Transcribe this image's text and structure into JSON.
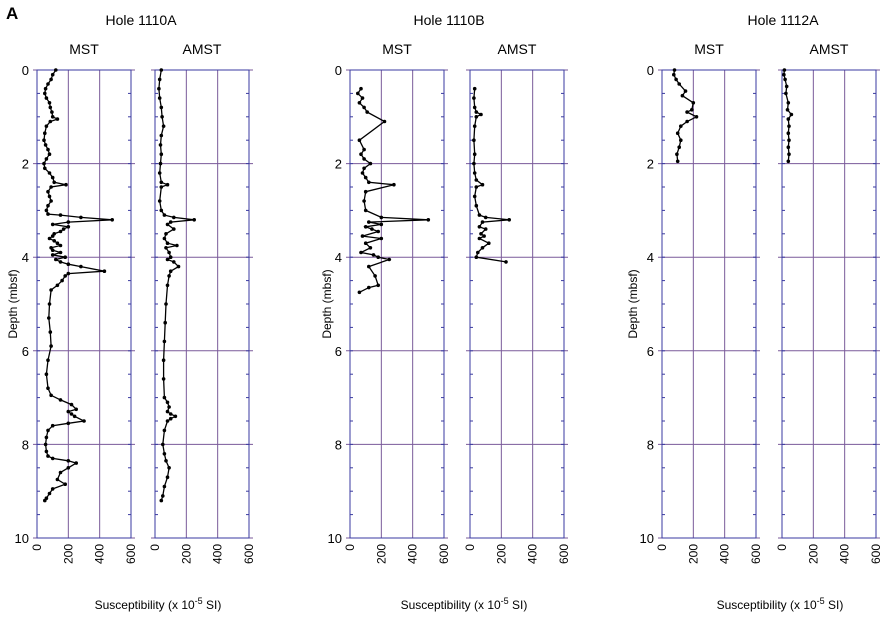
{
  "figure": {
    "panel_label": "A",
    "ylabel": "Depth (mbsf)",
    "xlabel_prefix": "Susceptibility (x 10",
    "xlabel_exp": "-5",
    "xlabel_suffix": " SI)",
    "colors": {
      "grid": "#7a5a9a",
      "axis": "#3a3aa0",
      "line": "#000000"
    }
  },
  "chart_data": [
    {
      "type": "line",
      "title": "Hole 1110A",
      "ylim": [
        0,
        10
      ],
      "xlim": [
        0,
        600
      ],
      "y_ticks": [
        0,
        2,
        4,
        6,
        8,
        10
      ],
      "x_ticks": [
        0,
        200,
        400,
        600
      ],
      "y_inverted": true,
      "series": [
        {
          "name": "MST",
          "points": [
            [
              120,
              0
            ],
            [
              100,
              0.1
            ],
            [
              90,
              0.2
            ],
            [
              70,
              0.3
            ],
            [
              55,
              0.4
            ],
            [
              50,
              0.5
            ],
            [
              60,
              0.6
            ],
            [
              80,
              0.7
            ],
            [
              85,
              0.8
            ],
            [
              95,
              0.9
            ],
            [
              100,
              1.0
            ],
            [
              130,
              1.05
            ],
            [
              85,
              1.1
            ],
            [
              60,
              1.2
            ],
            [
              50,
              1.35
            ],
            [
              45,
              1.5
            ],
            [
              55,
              1.6
            ],
            [
              70,
              1.7
            ],
            [
              80,
              1.8
            ],
            [
              60,
              1.9
            ],
            [
              45,
              2.0
            ],
            [
              50,
              2.1
            ],
            [
              80,
              2.2
            ],
            [
              100,
              2.3
            ],
            [
              110,
              2.4
            ],
            [
              185,
              2.45
            ],
            [
              90,
              2.5
            ],
            [
              70,
              2.6
            ],
            [
              80,
              2.7
            ],
            [
              90,
              2.8
            ],
            [
              70,
              2.9
            ],
            [
              60,
              3.0
            ],
            [
              70,
              3.08
            ],
            [
              150,
              3.1
            ],
            [
              280,
              3.15
            ],
            [
              480,
              3.2
            ],
            [
              200,
              3.25
            ],
            [
              100,
              3.3
            ],
            [
              200,
              3.35
            ],
            [
              170,
              3.4
            ],
            [
              150,
              3.45
            ],
            [
              110,
              3.5
            ],
            [
              100,
              3.55
            ],
            [
              80,
              3.6
            ],
            [
              110,
              3.65
            ],
            [
              130,
              3.7
            ],
            [
              150,
              3.75
            ],
            [
              90,
              3.8
            ],
            [
              100,
              3.85
            ],
            [
              150,
              3.9
            ],
            [
              100,
              3.95
            ],
            [
              180,
              4.0
            ],
            [
              120,
              4.05
            ],
            [
              150,
              4.1
            ],
            [
              200,
              4.15
            ],
            [
              280,
              4.2
            ],
            [
              430,
              4.3
            ],
            [
              200,
              4.35
            ],
            [
              180,
              4.4
            ],
            [
              160,
              4.5
            ],
            [
              130,
              4.6
            ],
            [
              90,
              4.7
            ],
            [
              80,
              5.0
            ],
            [
              75,
              5.3
            ],
            [
              85,
              5.6
            ],
            [
              90,
              5.9
            ],
            [
              70,
              6.2
            ],
            [
              60,
              6.5
            ],
            [
              70,
              6.8
            ],
            [
              90,
              6.95
            ],
            [
              150,
              7.05
            ],
            [
              220,
              7.15
            ],
            [
              250,
              7.25
            ],
            [
              200,
              7.3
            ],
            [
              220,
              7.35
            ],
            [
              240,
              7.4
            ],
            [
              300,
              7.5
            ],
            [
              200,
              7.55
            ],
            [
              100,
              7.6
            ],
            [
              70,
              7.7
            ],
            [
              60,
              7.85
            ],
            [
              55,
              8.0
            ],
            [
              60,
              8.15
            ],
            [
              70,
              8.25
            ],
            [
              100,
              8.3
            ],
            [
              200,
              8.35
            ],
            [
              250,
              8.4
            ],
            [
              200,
              8.5
            ],
            [
              150,
              8.6
            ],
            [
              130,
              8.75
            ],
            [
              180,
              8.85
            ],
            [
              100,
              8.95
            ],
            [
              80,
              9.05
            ],
            [
              60,
              9.15
            ],
            [
              50,
              9.2
            ]
          ]
        },
        {
          "name": "AMST",
          "points": [
            [
              40,
              0
            ],
            [
              30,
              0.2
            ],
            [
              25,
              0.4
            ],
            [
              30,
              0.6
            ],
            [
              40,
              0.8
            ],
            [
              45,
              1.0
            ],
            [
              55,
              1.2
            ],
            [
              40,
              1.4
            ],
            [
              35,
              1.6
            ],
            [
              40,
              1.8
            ],
            [
              35,
              2.0
            ],
            [
              30,
              2.2
            ],
            [
              40,
              2.4
            ],
            [
              80,
              2.45
            ],
            [
              40,
              2.5
            ],
            [
              30,
              2.8
            ],
            [
              40,
              3.0
            ],
            [
              60,
              3.1
            ],
            [
              120,
              3.15
            ],
            [
              250,
              3.2
            ],
            [
              100,
              3.25
            ],
            [
              80,
              3.3
            ],
            [
              120,
              3.4
            ],
            [
              70,
              3.5
            ],
            [
              60,
              3.6
            ],
            [
              80,
              3.7
            ],
            [
              140,
              3.75
            ],
            [
              70,
              3.8
            ],
            [
              90,
              3.9
            ],
            [
              100,
              4.0
            ],
            [
              80,
              4.05
            ],
            [
              120,
              4.1
            ],
            [
              150,
              4.2
            ],
            [
              100,
              4.3
            ],
            [
              90,
              4.4
            ],
            [
              80,
              4.6
            ],
            [
              70,
              5.0
            ],
            [
              65,
              5.4
            ],
            [
              60,
              5.8
            ],
            [
              55,
              6.2
            ],
            [
              55,
              6.6
            ],
            [
              60,
              7.0
            ],
            [
              80,
              7.1
            ],
            [
              90,
              7.2
            ],
            [
              80,
              7.3
            ],
            [
              100,
              7.35
            ],
            [
              130,
              7.4
            ],
            [
              100,
              7.45
            ],
            [
              80,
              7.5
            ],
            [
              60,
              7.7
            ],
            [
              50,
              8.0
            ],
            [
              60,
              8.2
            ],
            [
              70,
              8.35
            ],
            [
              90,
              8.5
            ],
            [
              80,
              8.7
            ],
            [
              60,
              8.9
            ],
            [
              50,
              9.1
            ],
            [
              40,
              9.2
            ]
          ]
        }
      ]
    },
    {
      "type": "line",
      "title": "Hole 1110B",
      "ylim": [
        0,
        10
      ],
      "xlim": [
        0,
        600
      ],
      "y_ticks": [
        0,
        2,
        4,
        6,
        8,
        10
      ],
      "x_ticks": [
        0,
        200,
        400,
        600
      ],
      "y_inverted": true,
      "series": [
        {
          "name": "MST",
          "points": [
            [
              70,
              0.4
            ],
            [
              50,
              0.5
            ],
            [
              80,
              0.6
            ],
            [
              60,
              0.7
            ],
            [
              90,
              0.8
            ],
            [
              110,
              0.9
            ],
            [
              220,
              1.1
            ],
            [
              60,
              1.5
            ],
            [
              90,
              1.7
            ],
            [
              70,
              1.8
            ],
            [
              90,
              1.9
            ],
            [
              130,
              2.0
            ],
            [
              90,
              2.1
            ],
            [
              80,
              2.2
            ],
            [
              100,
              2.3
            ],
            [
              120,
              2.4
            ],
            [
              280,
              2.45
            ],
            [
              100,
              2.6
            ],
            [
              90,
              2.8
            ],
            [
              100,
              3.0
            ],
            [
              200,
              3.15
            ],
            [
              500,
              3.2
            ],
            [
              120,
              3.25
            ],
            [
              200,
              3.3
            ],
            [
              100,
              3.35
            ],
            [
              140,
              3.4
            ],
            [
              180,
              3.45
            ],
            [
              80,
              3.55
            ],
            [
              200,
              3.6
            ],
            [
              100,
              3.7
            ],
            [
              130,
              3.8
            ],
            [
              70,
              3.9
            ],
            [
              150,
              3.95
            ],
            [
              180,
              4.0
            ],
            [
              250,
              4.05
            ],
            [
              120,
              4.2
            ],
            [
              160,
              4.4
            ],
            [
              180,
              4.6
            ],
            [
              120,
              4.65
            ],
            [
              60,
              4.75
            ]
          ]
        },
        {
          "name": "AMST",
          "points": [
            [
              30,
              0.4
            ],
            [
              25,
              0.6
            ],
            [
              30,
              0.8
            ],
            [
              40,
              0.9
            ],
            [
              70,
              0.95
            ],
            [
              40,
              1.0
            ],
            [
              30,
              1.2
            ],
            [
              25,
              1.5
            ],
            [
              30,
              1.8
            ],
            [
              25,
              2.0
            ],
            [
              30,
              2.2
            ],
            [
              40,
              2.35
            ],
            [
              80,
              2.45
            ],
            [
              40,
              2.5
            ],
            [
              30,
              2.7
            ],
            [
              40,
              2.9
            ],
            [
              60,
              3.1
            ],
            [
              100,
              3.15
            ],
            [
              250,
              3.2
            ],
            [
              80,
              3.25
            ],
            [
              60,
              3.35
            ],
            [
              100,
              3.4
            ],
            [
              70,
              3.5
            ],
            [
              90,
              3.55
            ],
            [
              60,
              3.6
            ],
            [
              120,
              3.7
            ],
            [
              80,
              3.8
            ],
            [
              50,
              3.9
            ],
            [
              40,
              4.0
            ],
            [
              230,
              4.1
            ]
          ]
        }
      ]
    },
    {
      "type": "line",
      "title": "Hole 1112A",
      "ylim": [
        0,
        10
      ],
      "xlim": [
        0,
        600
      ],
      "y_ticks": [
        0,
        2,
        4,
        6,
        8,
        10
      ],
      "x_ticks": [
        0,
        200,
        400,
        600
      ],
      "y_inverted": true,
      "series": [
        {
          "name": "MST",
          "points": [
            [
              80,
              0
            ],
            [
              75,
              0.1
            ],
            [
              90,
              0.2
            ],
            [
              110,
              0.3
            ],
            [
              150,
              0.45
            ],
            [
              130,
              0.55
            ],
            [
              200,
              0.7
            ],
            [
              190,
              0.85
            ],
            [
              160,
              0.9
            ],
            [
              220,
              1.0
            ],
            [
              160,
              1.1
            ],
            [
              120,
              1.2
            ],
            [
              100,
              1.35
            ],
            [
              120,
              1.5
            ],
            [
              110,
              1.65
            ],
            [
              95,
              1.8
            ],
            [
              100,
              1.95
            ]
          ]
        },
        {
          "name": "AMST",
          "points": [
            [
              15,
              0
            ],
            [
              12,
              0.1
            ],
            [
              20,
              0.2
            ],
            [
              30,
              0.35
            ],
            [
              25,
              0.5
            ],
            [
              40,
              0.7
            ],
            [
              35,
              0.85
            ],
            [
              60,
              0.95
            ],
            [
              40,
              1.05
            ],
            [
              45,
              1.2
            ],
            [
              40,
              1.35
            ],
            [
              45,
              1.5
            ],
            [
              40,
              1.65
            ],
            [
              45,
              1.8
            ],
            [
              40,
              1.95
            ]
          ]
        }
      ]
    }
  ]
}
